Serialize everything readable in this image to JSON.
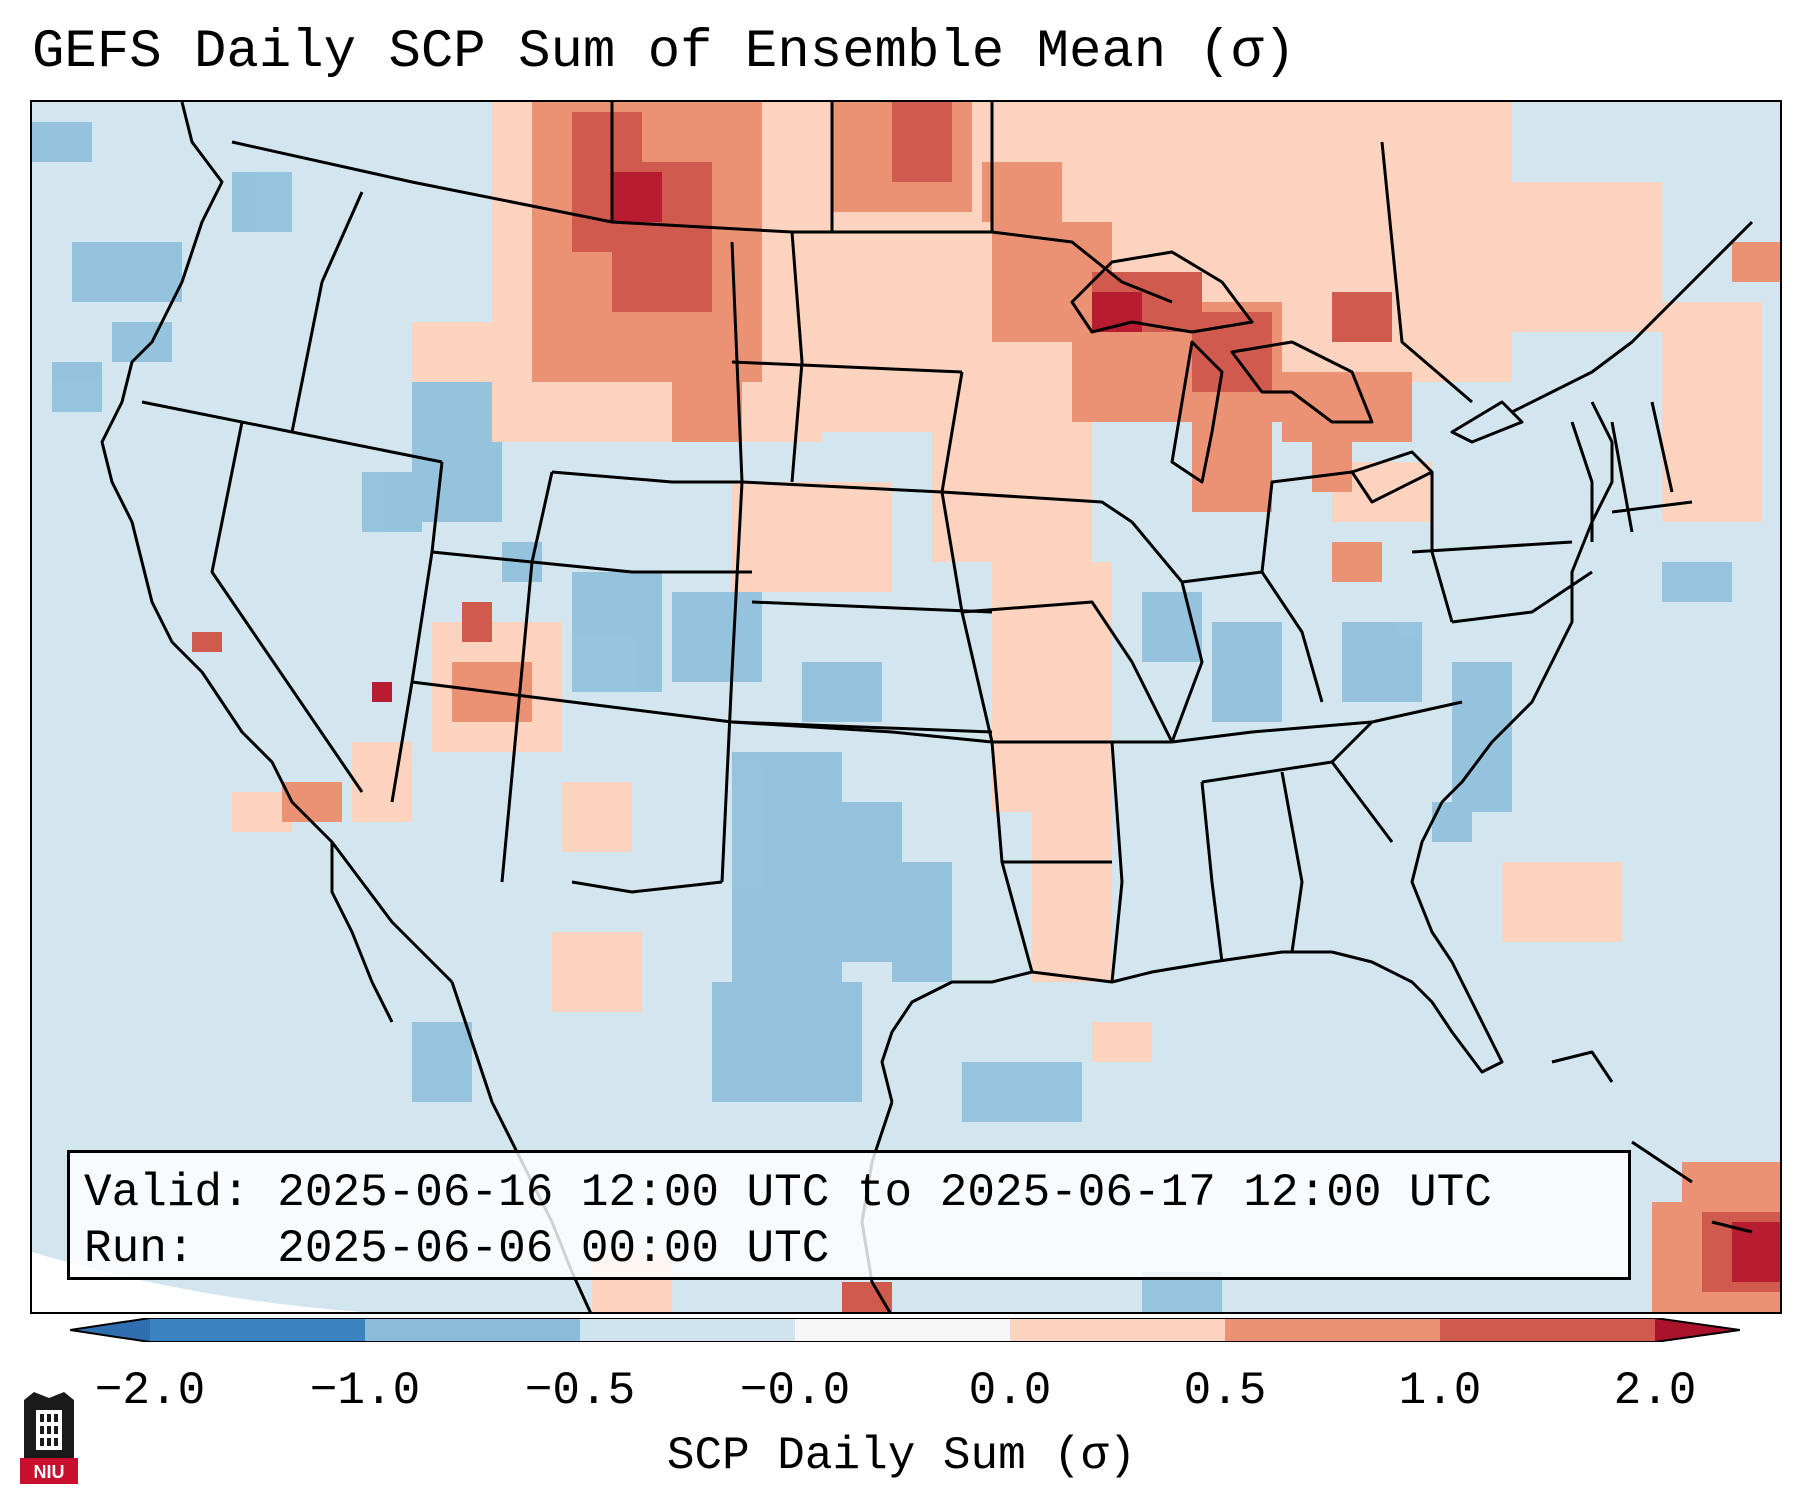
{
  "title": "GEFS Daily SCP Sum of Ensemble Mean (σ)",
  "info": {
    "valid_label": "Valid:",
    "valid_value": "2025-06-16 12:00 UTC to 2025-06-17 12:00 UTC",
    "run_label": "Run:",
    "run_value": "2025-06-06 00:00 UTC"
  },
  "colorbar": {
    "label": "SCP Daily Sum (σ)",
    "ticks": [
      "−2.0",
      "−1.0",
      "−0.5",
      "−0.0",
      "0.0",
      "0.5",
      "1.0",
      "2.0"
    ],
    "colors": [
      "#3a83c1",
      "#8bbddb",
      "#cfe4ef",
      "#f7f7f7",
      "#fbd3bf",
      "#eb9275",
      "#d05a4e",
      "#b81c30"
    ],
    "extend_low_color": "#2f6fb0",
    "extend_high_color": "#a9122a"
  },
  "map": {
    "background_color": "#d3e6f0",
    "outside_projection_color": "#ffffff",
    "boundary_color": "#000000"
  },
  "logo": {
    "text": "NIU",
    "color": "#c8102e"
  }
}
